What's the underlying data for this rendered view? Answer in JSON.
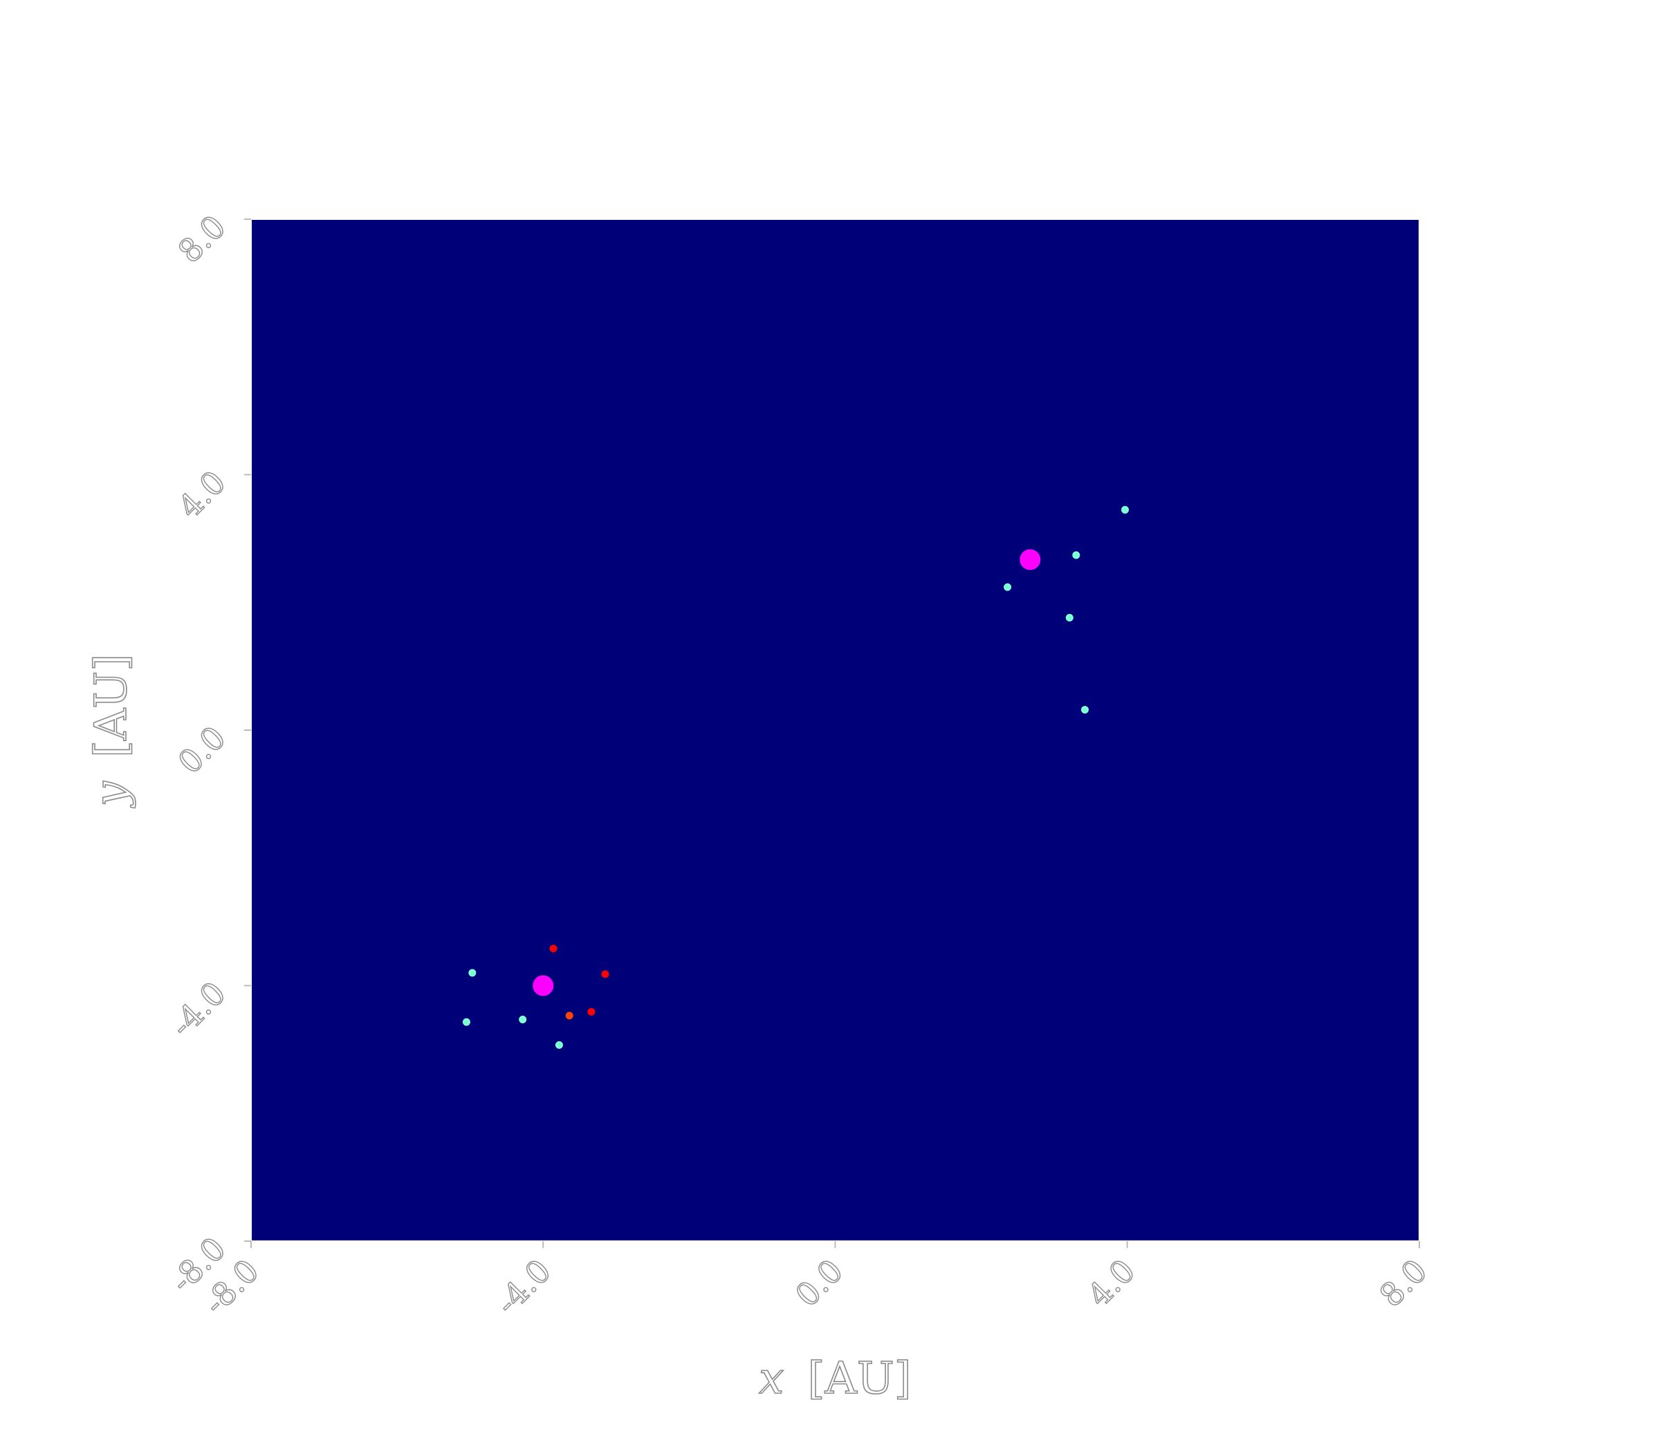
{
  "chart_data": {
    "type": "scatter",
    "title": "",
    "xlabel_var": "x",
    "xlabel_unit": "[AU]",
    "ylabel_var": "y",
    "ylabel_unit": "[AU]",
    "xlim": [
      -8.0,
      8.0
    ],
    "ylim": [
      -8.0,
      8.0
    ],
    "xticks": [
      "-8.0",
      "-4.0",
      "0.0",
      "4.0",
      "8.0"
    ],
    "yticks": [
      "-8.0",
      "-4.0",
      "0.0",
      "4.0",
      "8.0"
    ],
    "grid": false,
    "background_color": "#000078",
    "frame_color": "#ffffff",
    "series": [
      {
        "role": "stars",
        "color": "#ff00ff",
        "size": "large",
        "points": [
          {
            "x": -4.0,
            "y": -4.0
          },
          {
            "x": 2.67,
            "y": 2.67
          }
        ]
      },
      {
        "role": "cyan-bodies",
        "color": "#7fffd4",
        "size": "small",
        "points": [
          {
            "x": -4.97,
            "y": -3.8
          },
          {
            "x": -5.05,
            "y": -4.57
          },
          {
            "x": -4.28,
            "y": -4.53
          },
          {
            "x": -3.78,
            "y": -4.93
          },
          {
            "x": 3.97,
            "y": 3.45
          },
          {
            "x": 3.3,
            "y": 2.74
          },
          {
            "x": 2.36,
            "y": 2.24
          },
          {
            "x": 3.21,
            "y": 1.76
          },
          {
            "x": 3.42,
            "y": 0.32
          }
        ]
      },
      {
        "role": "red-bodies",
        "color": "#ff0000",
        "size": "small",
        "points": [
          {
            "x": -3.86,
            "y": -3.42
          },
          {
            "x": -3.15,
            "y": -3.82
          },
          {
            "x": -3.34,
            "y": -4.41
          }
        ]
      },
      {
        "role": "orange-bodies",
        "color": "#ff4500",
        "size": "small",
        "points": [
          {
            "x": -3.64,
            "y": -4.47
          }
        ]
      }
    ]
  }
}
